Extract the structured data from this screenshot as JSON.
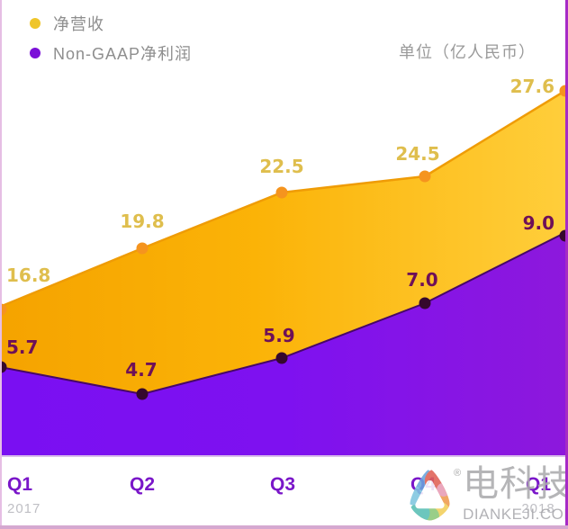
{
  "legend": {
    "items": [
      {
        "label": "净营收",
        "dot_color": "#efc52a"
      },
      {
        "label": "Non-GAAP净利润",
        "dot_color": "#7b10d8"
      }
    ],
    "unit_label": "单位（亿人民币）"
  },
  "chart_data": {
    "type": "area",
    "categories": [
      "Q1",
      "Q2",
      "Q3",
      "Q4",
      "Q1"
    ],
    "category_years": [
      "2017",
      "",
      "",
      "",
      "2018"
    ],
    "series": [
      {
        "name": "净营收",
        "values": [
          16.8,
          19.8,
          22.5,
          24.5,
          27.6
        ]
      },
      {
        "name": "Non-GAAP净利润",
        "values": [
          5.7,
          4.7,
          5.9,
          7.0,
          9.0
        ]
      }
    ],
    "title": "",
    "unit": "亿人民币",
    "legend_position": "top-left",
    "grid": false
  },
  "colors": {
    "revenue_fill_start": "#f5a300",
    "revenue_fill_mid": "#fbb307",
    "revenue_fill_end": "#ffce3b",
    "revenue_stroke": "#ef9c06",
    "revenue_dot": "#f5941e",
    "revenue_label": "#dfbe4d",
    "profit_fill_start": "#7a0ff2",
    "profit_fill_mid": "#7e11f0",
    "profit_fill_end": "#8d18dc",
    "profit_stroke": "#470766",
    "profit_dot": "#35082d",
    "profit_label": "#6e1058",
    "axis_quarter": "#7a16c9",
    "axis_year": "#bfbfc4"
  },
  "watermark": {
    "registered": "®",
    "brand": "电科技",
    "domain": "DIANKEJI.COM"
  }
}
